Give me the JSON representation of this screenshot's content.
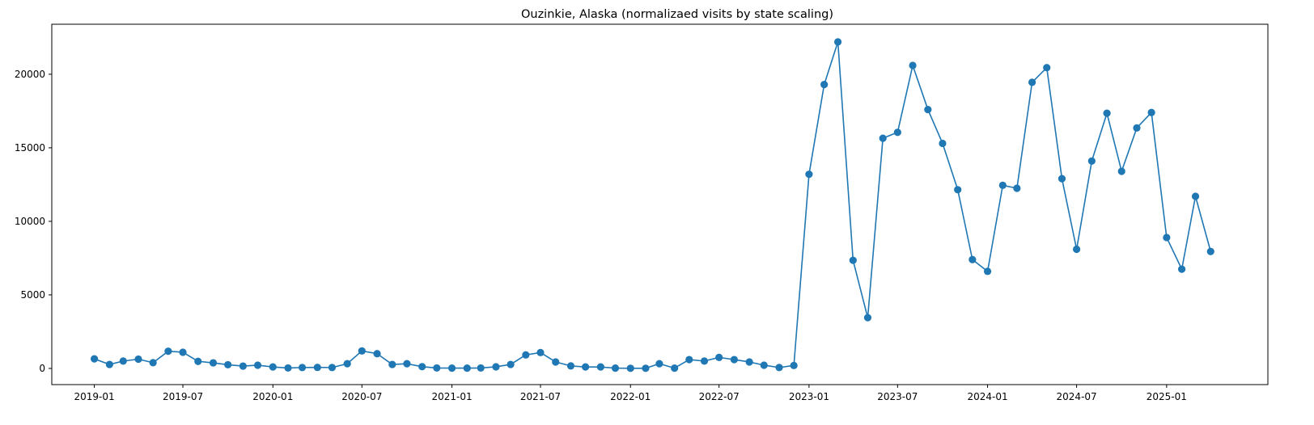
{
  "chart_data": {
    "type": "line",
    "title": "Ouzinkie, Alaska (normalizaed visits by state scaling)",
    "xlabel": "",
    "ylabel": "",
    "ylim": [
      -1100,
      23400
    ],
    "xlim": [
      "2018-10-06",
      "2025-07-27"
    ],
    "grid": false,
    "legend": "none",
    "marker": "circle",
    "colors": {
      "series": "#1f77b4",
      "axes": "#000000",
      "background": "#ffffff"
    },
    "y_ticks": [
      0,
      5000,
      10000,
      15000,
      20000
    ],
    "x_ticks": [
      "2019-01",
      "2019-07",
      "2020-01",
      "2020-07",
      "2021-01",
      "2021-07",
      "2022-01",
      "2022-07",
      "2023-01",
      "2023-07",
      "2024-01",
      "2024-07",
      "2025-01"
    ],
    "x": [
      "2019-01",
      "2019-02",
      "2019-03",
      "2019-04",
      "2019-05",
      "2019-06",
      "2019-07",
      "2019-08",
      "2019-09",
      "2019-10",
      "2019-11",
      "2019-12",
      "2020-01",
      "2020-02",
      "2020-03",
      "2020-04",
      "2020-05",
      "2020-06",
      "2020-07",
      "2020-08",
      "2020-09",
      "2020-10",
      "2020-11",
      "2020-12",
      "2021-01",
      "2021-02",
      "2021-03",
      "2021-04",
      "2021-05",
      "2021-06",
      "2021-07",
      "2021-08",
      "2021-09",
      "2021-10",
      "2021-11",
      "2021-12",
      "2022-01",
      "2022-02",
      "2022-03",
      "2022-04",
      "2022-05",
      "2022-06",
      "2022-07",
      "2022-08",
      "2022-09",
      "2022-10",
      "2022-11",
      "2022-12",
      "2023-01",
      "2023-02",
      "2023-03",
      "2023-04",
      "2023-05",
      "2023-06",
      "2023-07",
      "2023-08",
      "2023-09",
      "2023-10",
      "2023-11",
      "2023-12",
      "2024-01",
      "2024-02",
      "2024-03",
      "2024-04",
      "2024-05",
      "2024-06",
      "2024-07",
      "2024-08",
      "2024-09",
      "2024-10",
      "2024-11",
      "2024-12",
      "2025-01",
      "2025-02",
      "2025-03",
      "2025-04"
    ],
    "series": [
      {
        "values": [
          650,
          270,
          500,
          630,
          390,
          1170,
          1100,
          480,
          380,
          250,
          160,
          220,
          100,
          30,
          60,
          70,
          60,
          320,
          1190,
          1000,
          270,
          320,
          120,
          30,
          20,
          20,
          30,
          110,
          270,
          920,
          1080,
          440,
          170,
          100,
          100,
          20,
          10,
          10,
          320,
          20,
          600,
          500,
          750,
          600,
          440,
          220,
          60,
          200,
          13200,
          19300,
          22200,
          7350,
          3450,
          15650,
          16050,
          20600,
          17600,
          15300,
          12150,
          7400,
          6600,
          12450,
          12250,
          19450,
          20450,
          12900,
          8100,
          14100,
          17350,
          13400,
          16350,
          17400,
          8900,
          6750,
          11700,
          7950
        ]
      }
    ]
  }
}
